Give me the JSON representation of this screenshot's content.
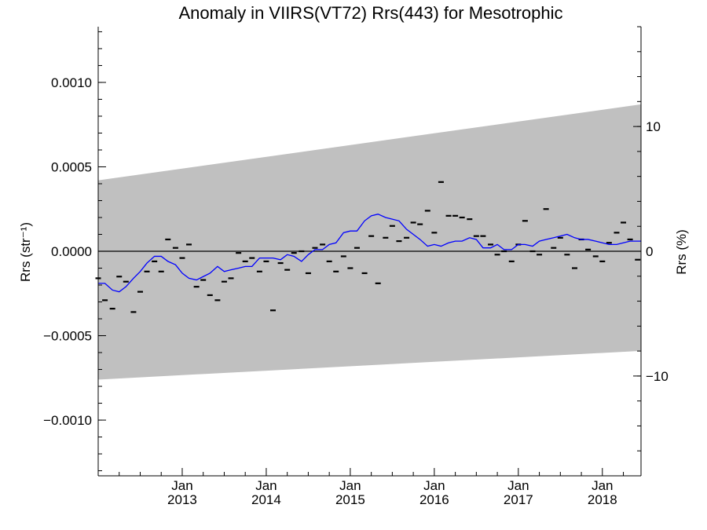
{
  "chart_data": {
    "type": "scatter",
    "title": "Anomaly in VIIRS(VT72) Rrs(443) for Mesotrophic",
    "ylabel": "Rrs (str⁻¹)",
    "ylabel_right": "Rrs (%)",
    "xlim": [
      2012.0,
      2018.46
    ],
    "ylim": [
      -0.00133,
      0.00133
    ],
    "ylim_right_percent": [
      -18.0,
      18.0
    ],
    "yticks": [
      {
        "value": -0.001,
        "label": "−0.0010"
      },
      {
        "value": -0.0005,
        "label": "−0.0005"
      },
      {
        "value": 0.0,
        "label": "0.0000"
      },
      {
        "value": 0.0005,
        "label": "0.0005"
      },
      {
        "value": 0.001,
        "label": "0.0010"
      }
    ],
    "yticks_right": [
      {
        "value": -10,
        "label": "−10"
      },
      {
        "value": 0,
        "label": "0"
      },
      {
        "value": 10,
        "label": "10"
      }
    ],
    "xticks": [
      {
        "value": 2013.0,
        "line1": "Jan",
        "line2": "2013"
      },
      {
        "value": 2014.0,
        "line1": "Jan",
        "line2": "2014"
      },
      {
        "value": 2015.0,
        "line1": "Jan",
        "line2": "2015"
      },
      {
        "value": 2016.0,
        "line1": "Jan",
        "line2": "2016"
      },
      {
        "value": 2017.0,
        "line1": "Jan",
        "line2": "2017"
      },
      {
        "value": 2018.0,
        "line1": "Jan",
        "line2": "2018"
      }
    ],
    "zero_line": 0.0,
    "band": {
      "color": "#c0c0c0",
      "x": [
        2012.0,
        2018.46
      ],
      "upper": [
        0.00042,
        0.00087
      ],
      "lower": [
        -0.00076,
        -0.00059
      ]
    },
    "points": {
      "color": "#000000",
      "marker": "dash",
      "x": [
        2012.0,
        2012.08,
        2012.17,
        2012.25,
        2012.33,
        2012.42,
        2012.5,
        2012.58,
        2012.67,
        2012.75,
        2012.83,
        2012.92,
        2013.0,
        2013.08,
        2013.17,
        2013.25,
        2013.33,
        2013.42,
        2013.5,
        2013.58,
        2013.67,
        2013.75,
        2013.83,
        2013.92,
        2014.0,
        2014.08,
        2014.17,
        2014.25,
        2014.33,
        2014.42,
        2014.5,
        2014.58,
        2014.67,
        2014.75,
        2014.83,
        2014.92,
        2015.0,
        2015.08,
        2015.17,
        2015.25,
        2015.33,
        2015.42,
        2015.5,
        2015.58,
        2015.67,
        2015.75,
        2015.83,
        2015.92,
        2016.0,
        2016.08,
        2016.17,
        2016.25,
        2016.33,
        2016.42,
        2016.5,
        2016.58,
        2016.67,
        2016.75,
        2016.83,
        2016.92,
        2017.0,
        2017.08,
        2017.17,
        2017.25,
        2017.33,
        2017.42,
        2017.5,
        2017.58,
        2017.67,
        2017.75,
        2017.83,
        2017.92,
        2018.0,
        2018.08,
        2018.17,
        2018.25,
        2018.33,
        2018.42
      ],
      "y": [
        -0.00016,
        -0.00029,
        -0.00034,
        -0.00015,
        -0.00018,
        -0.00036,
        -0.00024,
        -0.00012,
        -6e-05,
        -0.00012,
        7e-05,
        2e-05,
        -4e-05,
        4e-05,
        -0.00021,
        -0.00017,
        -0.00026,
        -0.00029,
        -0.00018,
        -0.00016,
        -1e-05,
        -6e-05,
        -4e-05,
        -0.00012,
        -6e-05,
        -0.00035,
        -7e-05,
        -0.00011,
        -1e-05,
        0.0,
        -0.00013,
        2e-05,
        4e-05,
        -6e-05,
        -0.00012,
        -3e-05,
        -0.0001,
        2e-05,
        -0.00013,
        9e-05,
        -0.00019,
        8e-05,
        0.00015,
        6e-05,
        8e-05,
        0.00017,
        0.00016,
        0.00024,
        0.00011,
        0.00041,
        0.00021,
        0.00021,
        0.0002,
        0.00019,
        9e-05,
        9e-05,
        4e-05,
        -2e-05,
        0.0,
        -6e-05,
        4e-05,
        0.00018,
        0.0,
        -2e-05,
        0.00025,
        2e-05,
        8e-05,
        -2e-05,
        -0.0001,
        7e-05,
        1e-05,
        -3e-05,
        -6e-05,
        5e-05,
        0.00011,
        0.00017,
        7e-05,
        -5e-05
      ]
    },
    "series": [
      {
        "color": "#0000ff",
        "x": [
          2012.0,
          2012.08,
          2012.17,
          2012.25,
          2012.33,
          2012.42,
          2012.5,
          2012.58,
          2012.67,
          2012.75,
          2012.83,
          2012.92,
          2013.0,
          2013.08,
          2013.17,
          2013.25,
          2013.33,
          2013.42,
          2013.5,
          2013.58,
          2013.67,
          2013.75,
          2013.83,
          2013.92,
          2014.0,
          2014.08,
          2014.17,
          2014.25,
          2014.33,
          2014.42,
          2014.5,
          2014.58,
          2014.67,
          2014.75,
          2014.83,
          2014.92,
          2015.0,
          2015.08,
          2015.17,
          2015.25,
          2015.33,
          2015.42,
          2015.5,
          2015.58,
          2015.67,
          2015.75,
          2015.83,
          2015.92,
          2016.0,
          2016.08,
          2016.17,
          2016.25,
          2016.33,
          2016.42,
          2016.5,
          2016.58,
          2016.67,
          2016.75,
          2016.83,
          2016.92,
          2017.0,
          2017.08,
          2017.17,
          2017.25,
          2017.33,
          2017.42,
          2017.5,
          2017.58,
          2017.67,
          2017.75,
          2017.83,
          2017.92,
          2018.0,
          2018.08,
          2018.17,
          2018.25,
          2018.33,
          2018.42,
          2018.46
        ],
        "y": [
          -0.00019,
          -0.00019,
          -0.00023,
          -0.00024,
          -0.00021,
          -0.00016,
          -0.00012,
          -7e-05,
          -3e-05,
          -3e-05,
          -6e-05,
          -8e-05,
          -0.00013,
          -0.00016,
          -0.00017,
          -0.00015,
          -0.00013,
          -9e-05,
          -0.00012,
          -0.00011,
          -0.0001,
          -9e-05,
          -9e-05,
          -4e-05,
          -4e-05,
          -4e-05,
          -5e-05,
          -2e-05,
          -3e-05,
          -6e-05,
          -2e-05,
          1e-05,
          1e-05,
          4e-05,
          5e-05,
          0.00011,
          0.00012,
          0.00012,
          0.00018,
          0.00021,
          0.00022,
          0.0002,
          0.00019,
          0.00018,
          0.00013,
          0.0001,
          7e-05,
          3e-05,
          4e-05,
          3e-05,
          5e-05,
          6e-05,
          6e-05,
          8e-05,
          7e-05,
          2e-05,
          2e-05,
          4e-05,
          1e-05,
          1e-05,
          4e-05,
          4e-05,
          3e-05,
          6e-05,
          7e-05,
          8e-05,
          9e-05,
          0.0001,
          8e-05,
          7e-05,
          7e-05,
          6e-05,
          5e-05,
          4e-05,
          4e-05,
          5e-05,
          6e-05,
          6e-05,
          6e-05
        ]
      }
    ]
  }
}
